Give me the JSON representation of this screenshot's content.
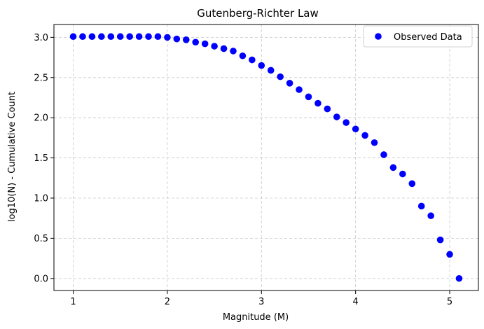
{
  "chart_data": {
    "type": "scatter",
    "title": "Gutenberg-Richter Law",
    "xlabel": "Magnitude (M)",
    "ylabel": "log10(N) - Cumulative Count",
    "xlim": [
      0.795,
      5.305
    ],
    "ylim": [
      -0.15,
      3.16
    ],
    "xticks": [
      1,
      2,
      3,
      4,
      5
    ],
    "yticks": [
      0.0,
      0.5,
      1.0,
      1.5,
      2.0,
      2.5,
      3.0
    ],
    "xtick_labels": [
      "1",
      "2",
      "3",
      "4",
      "5"
    ],
    "ytick_labels": [
      "0.0",
      "0.5",
      "1.0",
      "1.5",
      "2.0",
      "2.5",
      "3.0"
    ],
    "grid": true,
    "legend_position": "top-right",
    "series": [
      {
        "name": "Observed Data",
        "color": "#0000ff",
        "marker": "circle",
        "x": [
          1.0,
          1.1,
          1.2,
          1.3,
          1.4,
          1.5,
          1.6,
          1.7,
          1.8,
          1.9,
          2.0,
          2.1,
          2.2,
          2.3,
          2.4,
          2.5,
          2.6,
          2.7,
          2.8,
          2.9,
          3.0,
          3.1,
          3.2,
          3.3,
          3.4,
          3.5,
          3.6,
          3.7,
          3.8,
          3.9,
          4.0,
          4.1,
          4.2,
          4.3,
          4.4,
          4.5,
          4.6,
          4.7,
          4.8,
          4.9,
          5.0,
          5.1
        ],
        "y": [
          3.01,
          3.01,
          3.01,
          3.01,
          3.01,
          3.01,
          3.01,
          3.01,
          3.01,
          3.01,
          3.0,
          2.98,
          2.97,
          2.94,
          2.92,
          2.89,
          2.86,
          2.83,
          2.77,
          2.72,
          2.65,
          2.59,
          2.51,
          2.43,
          2.35,
          2.26,
          2.18,
          2.11,
          2.01,
          1.94,
          1.86,
          1.78,
          1.69,
          1.54,
          1.38,
          1.3,
          1.18,
          0.9,
          0.78,
          0.48,
          0.3,
          0.0
        ]
      }
    ]
  }
}
